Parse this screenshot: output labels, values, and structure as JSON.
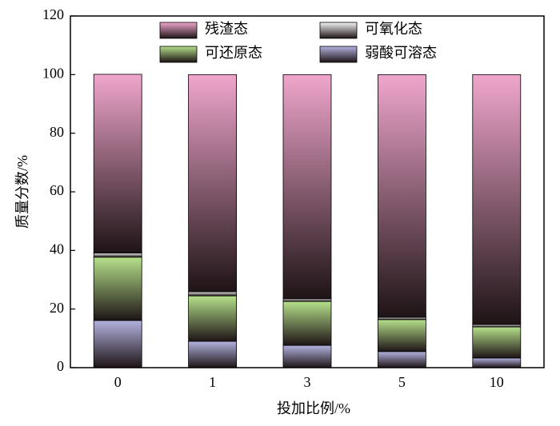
{
  "chart_data": {
    "type": "stacked_bar",
    "x_label": "投加比例/%",
    "y_label": "质量分数/%",
    "categories": [
      "0",
      "1",
      "3",
      "5",
      "10"
    ],
    "series": [
      {
        "name": "弱酸可溶态",
        "color": "#b3b3e0",
        "values": [
          16.1,
          9.0,
          7.6,
          5.5,
          3.3
        ]
      },
      {
        "name": "可还原态",
        "color": "#b5e08a",
        "values": [
          21.6,
          15.5,
          15.0,
          10.9,
          10.6
        ]
      },
      {
        "name": "可氧化态",
        "color": "#f4f4f4",
        "values": [
          1.4,
          1.4,
          0.9,
          0.8,
          0.8
        ]
      },
      {
        "name": "残渣态",
        "color": "#f0a6cc",
        "values": [
          61.0,
          74.1,
          76.5,
          82.8,
          85.3
        ]
      }
    ],
    "ylim": [
      0,
      120
    ],
    "yticks": [
      0,
      20,
      40,
      60,
      80,
      100,
      120
    ]
  }
}
